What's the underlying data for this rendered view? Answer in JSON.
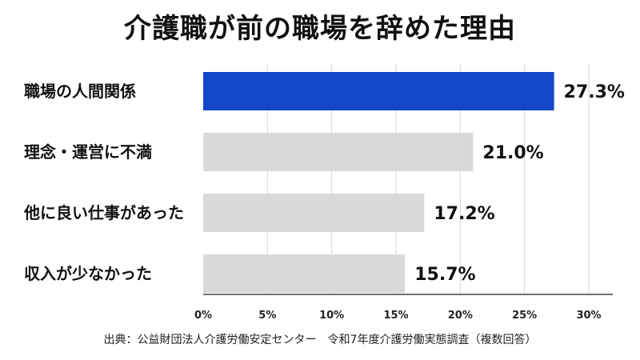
{
  "chart_data": {
    "type": "bar",
    "orientation": "horizontal",
    "title": "介護職が前の職場を辞めた理由",
    "categories": [
      "職場の人間関係",
      "理念・運営に不満",
      "他に良い仕事があった",
      "収入が少なかった"
    ],
    "values": [
      27.3,
      21.0,
      17.2,
      15.7
    ],
    "value_labels": [
      "27.3%",
      "21.0%",
      "17.2%",
      "15.7%"
    ],
    "highlight_index": 0,
    "xlim": [
      0,
      30
    ],
    "xticks": [
      0,
      5,
      10,
      15,
      20,
      25,
      30
    ],
    "xtick_labels": [
      "0%",
      "5%",
      "10%",
      "15%",
      "20%",
      "25%",
      "30%"
    ],
    "xlabel": "",
    "ylabel": "",
    "grid": true,
    "colors": {
      "highlight": "#1446c8",
      "default": "#d9d9d9",
      "grid": "#d6d6d6"
    }
  },
  "source": "出典：公益財団法人介護労働安定センター　令和7年度介護労働実態調査（複数回答）"
}
